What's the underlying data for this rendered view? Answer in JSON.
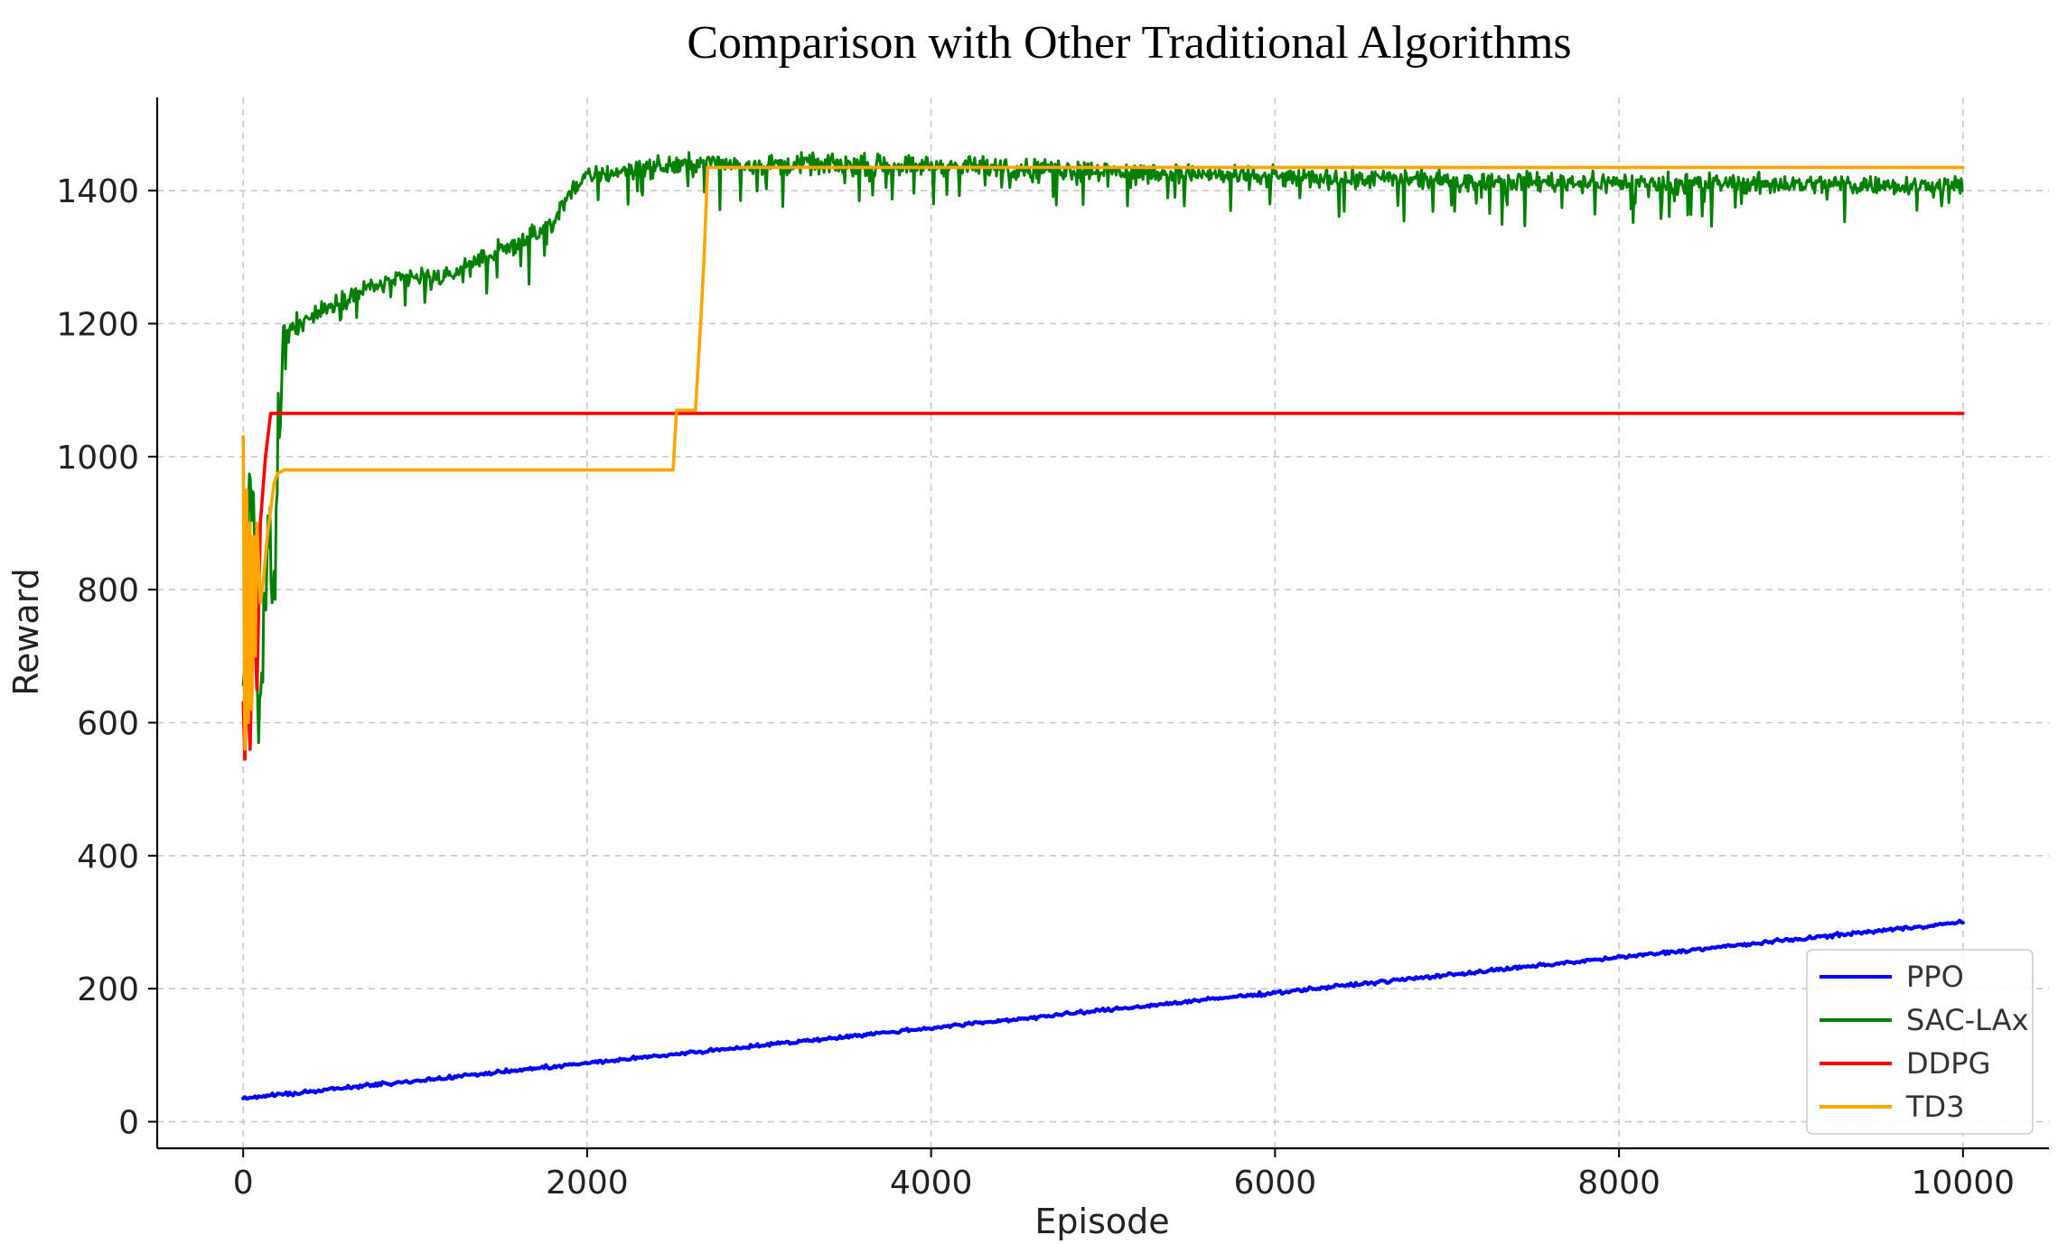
{
  "chart_data": {
    "type": "line",
    "title": "Comparison with Other Traditional Algorithms",
    "xlabel": "Episode",
    "ylabel": "Reward",
    "xlim": [
      -500,
      10500
    ],
    "ylim": [
      -40,
      1540
    ],
    "xticks": [
      0,
      2000,
      4000,
      6000,
      8000,
      10000
    ],
    "yticks": [
      0,
      200,
      400,
      600,
      800,
      1000,
      1200,
      1400
    ],
    "grid": true,
    "legend_position": "bottom-right",
    "series": [
      {
        "name": "PPO",
        "color": "#0000ff",
        "style": "linear_noisy",
        "x": [
          0,
          10000
        ],
        "y": [
          35,
          300
        ],
        "noise": 4
      },
      {
        "name": "SAC-LAx",
        "color": "#008000",
        "style": "noisy",
        "x": [
          0,
          30,
          60,
          90,
          120,
          150,
          180,
          200,
          230,
          260,
          300,
          400,
          600,
          800,
          1000,
          1200,
          1400,
          1600,
          1800,
          1900,
          2000,
          2200,
          2400,
          2600,
          2700,
          3000,
          4000,
          5000,
          6000,
          7000,
          8000,
          9000,
          10000
        ],
        "y": [
          620,
          900,
          950,
          580,
          720,
          900,
          760,
          1020,
          1150,
          1190,
          1200,
          1210,
          1240,
          1260,
          1270,
          1270,
          1300,
          1320,
          1350,
          1400,
          1420,
          1430,
          1435,
          1440,
          1442,
          1440,
          1438,
          1430,
          1420,
          1415,
          1412,
          1410,
          1408
        ],
        "noise": 22
      },
      {
        "name": "DDPG",
        "color": "#ff0000",
        "style": "exact",
        "x": [
          0,
          10,
          20,
          40,
          60,
          80,
          100,
          130,
          160,
          10000
        ],
        "y": [
          630,
          545,
          700,
          560,
          800,
          650,
          900,
          1000,
          1065,
          1065
        ]
      },
      {
        "name": "TD3",
        "color": "#ffa500",
        "style": "exact",
        "x": [
          0,
          10,
          20,
          30,
          40,
          50,
          60,
          70,
          80,
          100,
          120,
          140,
          160,
          180,
          200,
          240,
          2500,
          2520,
          2630,
          2660,
          2680,
          2700,
          10000
        ],
        "y": [
          1030,
          560,
          950,
          600,
          900,
          620,
          880,
          700,
          900,
          780,
          820,
          880,
          920,
          960,
          975,
          980,
          980,
          1070,
          1070,
          1200,
          1300,
          1435,
          1435
        ]
      }
    ]
  }
}
